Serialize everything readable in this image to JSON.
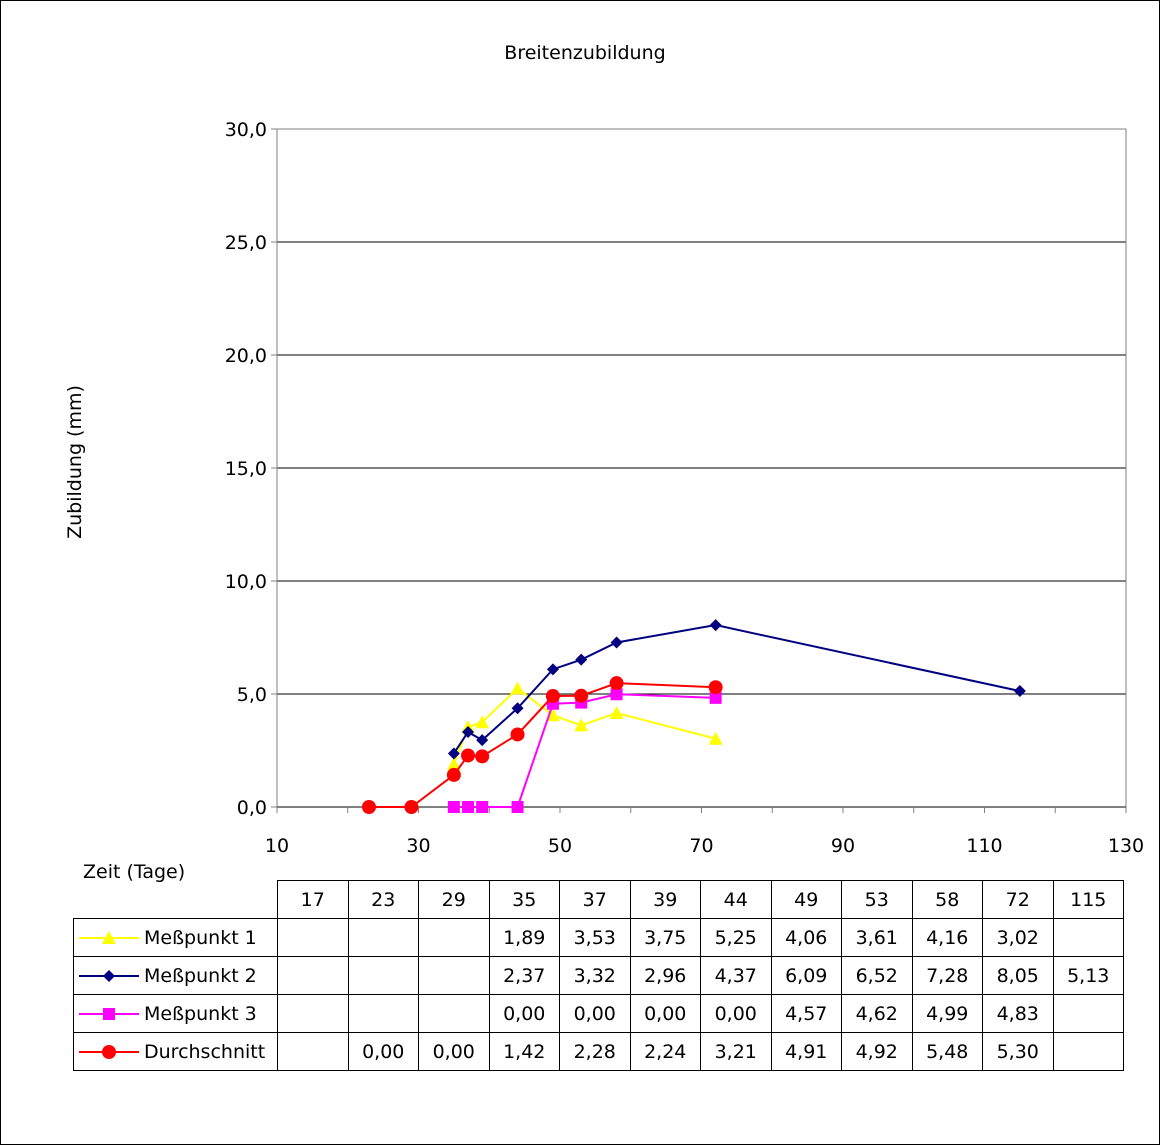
{
  "chart_data": {
    "type": "line",
    "title": "Breitenzubildung",
    "xlabel": "Zeit (Tage)",
    "ylabel": "Zubildung (mm)",
    "xlim": [
      10,
      130
    ],
    "ylim": [
      0,
      30
    ],
    "x_ticks": [
      "10",
      "30",
      "50",
      "70",
      "90",
      "110",
      "130"
    ],
    "y_ticks": [
      "0,0",
      "5,0",
      "10,0",
      "15,0",
      "20,0",
      "25,0",
      "30,0"
    ],
    "grid": "horizontal",
    "legend": "data table below chart",
    "categories": [
      "17",
      "23",
      "29",
      "35",
      "37",
      "39",
      "44",
      "49",
      "53",
      "58",
      "72",
      "115"
    ],
    "series": [
      {
        "name": "Meßpunkt 1",
        "color": "#FFFF00",
        "marker": "triangle",
        "x": [
          35,
          37,
          39,
          44,
          49,
          53,
          58,
          72
        ],
        "y": [
          1.89,
          3.53,
          3.75,
          5.25,
          4.06,
          3.61,
          4.16,
          3.02
        ],
        "labels": [
          "",
          "",
          "",
          "1,89",
          "3,53",
          "3,75",
          "5,25",
          "4,06",
          "3,61",
          "4,16",
          "3,02",
          ""
        ]
      },
      {
        "name": "Meßpunkt 2",
        "color": "#000080",
        "marker": "diamond",
        "x": [
          35,
          37,
          39,
          44,
          49,
          53,
          58,
          72,
          115
        ],
        "y": [
          2.37,
          3.32,
          2.96,
          4.37,
          6.09,
          6.52,
          7.28,
          8.05,
          5.13
        ],
        "labels": [
          "",
          "",
          "",
          "2,37",
          "3,32",
          "2,96",
          "4,37",
          "6,09",
          "6,52",
          "7,28",
          "8,05",
          "5,13"
        ]
      },
      {
        "name": "Meßpunkt 3",
        "color": "#FF00FF",
        "marker": "square",
        "x": [
          35,
          37,
          39,
          44,
          49,
          53,
          58,
          72
        ],
        "y": [
          0.0,
          0.0,
          0.0,
          0.0,
          4.57,
          4.62,
          4.99,
          4.83
        ],
        "labels": [
          "",
          "",
          "",
          "0,00",
          "0,00",
          "0,00",
          "0,00",
          "4,57",
          "4,62",
          "4,99",
          "4,83",
          ""
        ]
      },
      {
        "name": "Durchschnitt",
        "color": "#FF0000",
        "marker": "circle",
        "x": [
          23,
          29,
          35,
          37,
          39,
          44,
          49,
          53,
          58,
          72
        ],
        "y": [
          0.0,
          0.0,
          1.42,
          2.28,
          2.24,
          3.21,
          4.91,
          4.92,
          5.48,
          5.3
        ],
        "labels": [
          "",
          "0,00",
          "0,00",
          "1,42",
          "2,28",
          "2,24",
          "3,21",
          "4,91",
          "4,92",
          "5,48",
          "5,30",
          ""
        ]
      }
    ]
  }
}
